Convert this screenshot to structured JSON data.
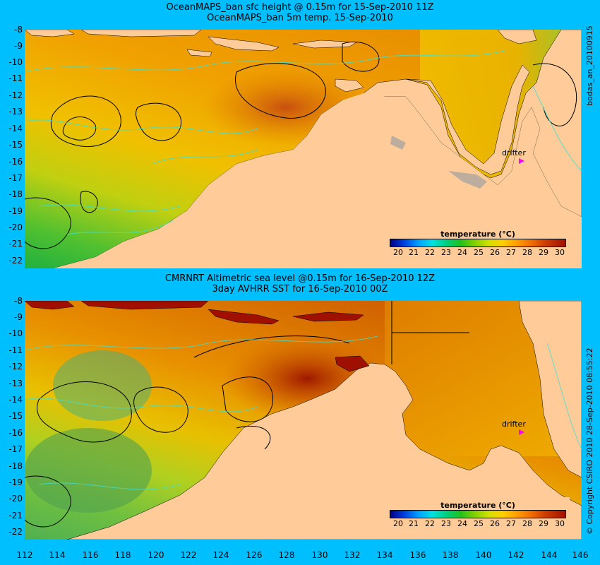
{
  "panel1": {
    "title_line1": "OceanMAPS_ban sfc height @ 0.15m for 15-Sep-2010 11Z",
    "title_line2": "OceanMAPS_ban 5m temp. 15-Sep-2010",
    "side_label": "bodas_an_20100915",
    "drifter_label": "drifter"
  },
  "panel2": {
    "title_line1": "CMRNRT Altimetric sea level  @0.15m  for 16-Sep-2010 12Z",
    "title_line2": "3day AVHRR SST for 16-Sep-2010 00Z",
    "side_label": "© Copyright CSIRO 2010   28-Sep-2010 08:55:22",
    "drifter_label": "drifter"
  },
  "colorbar": {
    "title": "temperature (°C)",
    "ticks": [
      "20",
      "21",
      "22",
      "23",
      "24",
      "25",
      "26",
      "27",
      "28",
      "29",
      "30"
    ]
  },
  "lat_ticks": [
    "-8",
    "-9",
    "-10",
    "-11",
    "-12",
    "-13",
    "-14",
    "-15",
    "-16",
    "-17",
    "-18",
    "-19",
    "-20",
    "-21",
    "-22"
  ],
  "lon_ticks": [
    "112",
    "114",
    "116",
    "118",
    "120",
    "122",
    "124",
    "126",
    "128",
    "130",
    "132",
    "134",
    "136",
    "138",
    "140",
    "142",
    "144",
    "146"
  ],
  "colors": {
    "background": "#00BFFF",
    "land": "#FFCC99",
    "contour": "#000000",
    "bathymetry": "#40E0D0",
    "drifter": "#FF00FF"
  }
}
